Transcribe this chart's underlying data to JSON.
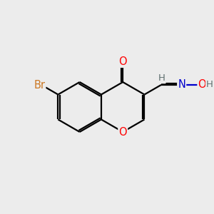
{
  "bg_color": "#ececec",
  "bond_color": "#000000",
  "bond_width": 1.6,
  "atom_colors": {
    "O": "#ff0000",
    "N": "#0000cc",
    "Br": "#cc7722",
    "H": "#607070",
    "C": "#000000"
  },
  "font_size": 10.5,
  "small_font_size": 9.5
}
